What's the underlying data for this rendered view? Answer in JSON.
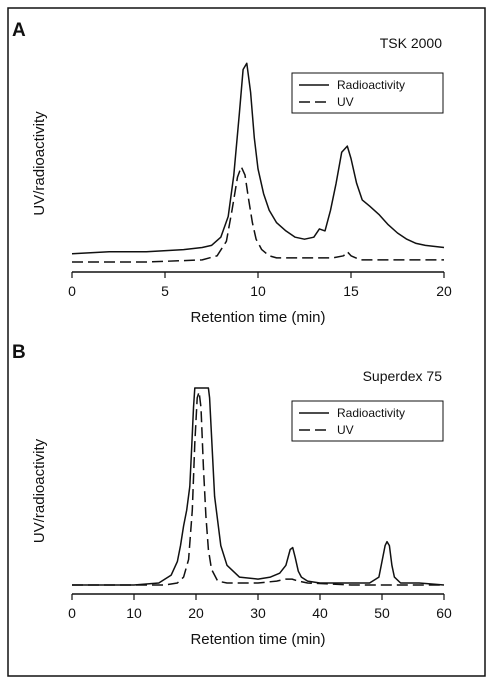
{
  "chart_data": [
    {
      "type": "line",
      "panel": "A",
      "title": "TSK 2000",
      "xlabel": "Retention time (min)",
      "ylabel": "UV/radioactivity",
      "xlim": [
        0,
        20
      ],
      "xticks": [
        0,
        5,
        10,
        15,
        20
      ],
      "ylim": [
        0,
        1.05
      ],
      "grid": false,
      "legend_position": "top-right",
      "series": [
        {
          "name": "Radioactivity",
          "style": "solid",
          "x": [
            0,
            2,
            4,
            6,
            7,
            7.5,
            8,
            8.4,
            8.7,
            9.0,
            9.2,
            9.4,
            9.6,
            9.8,
            10.0,
            10.3,
            10.6,
            11.0,
            11.5,
            12.0,
            12.5,
            13.0,
            13.3,
            13.6,
            13.9,
            14.2,
            14.5,
            14.8,
            15.0,
            15.3,
            15.6,
            16.0,
            16.5,
            17.0,
            17.5,
            18.0,
            18.5,
            19.0,
            20.0
          ],
          "y": [
            0.04,
            0.05,
            0.05,
            0.06,
            0.07,
            0.08,
            0.12,
            0.22,
            0.42,
            0.72,
            0.93,
            0.96,
            0.82,
            0.6,
            0.45,
            0.33,
            0.25,
            0.19,
            0.15,
            0.12,
            0.11,
            0.12,
            0.16,
            0.15,
            0.25,
            0.38,
            0.53,
            0.56,
            0.5,
            0.38,
            0.3,
            0.27,
            0.23,
            0.18,
            0.14,
            0.11,
            0.09,
            0.08,
            0.07
          ]
        },
        {
          "name": "UV",
          "style": "dashed",
          "x": [
            0,
            4,
            7,
            7.8,
            8.3,
            8.6,
            8.9,
            9.1,
            9.3,
            9.5,
            9.7,
            9.9,
            10.2,
            10.6,
            11.0,
            12.0,
            13.0,
            14.0,
            14.6,
            14.8,
            15.0,
            15.5,
            17.0,
            20.0
          ],
          "y": [
            0.0,
            0.0,
            0.01,
            0.03,
            0.1,
            0.25,
            0.41,
            0.46,
            0.42,
            0.3,
            0.19,
            0.11,
            0.06,
            0.03,
            0.02,
            0.02,
            0.02,
            0.02,
            0.03,
            0.05,
            0.03,
            0.01,
            0.01,
            0.01
          ]
        }
      ]
    },
    {
      "type": "line",
      "panel": "B",
      "title": "Superdex 75",
      "xlabel": "Retention time (min)",
      "ylabel": "UV/radioactivity",
      "xlim": [
        0,
        60
      ],
      "xticks": [
        0,
        10,
        20,
        30,
        40,
        50,
        60
      ],
      "ylim": [
        0,
        1.05
      ],
      "grid": false,
      "legend_position": "top-right",
      "series": [
        {
          "name": "Radioactivity",
          "style": "solid",
          "x": [
            0,
            10,
            14,
            16,
            17,
            17.5,
            18,
            18.5,
            19,
            19.3,
            19.6,
            19.8,
            22.0,
            22.2,
            22.6,
            23.0,
            24.0,
            25.0,
            27.0,
            30.0,
            32.0,
            33.5,
            34.5,
            35.2,
            35.6,
            36.0,
            36.5,
            37.0,
            38.0,
            40.0,
            45.0,
            48.0,
            49.5,
            50.0,
            50.5,
            50.8,
            51.2,
            51.6,
            52.0,
            53.0,
            56.0,
            60.0
          ],
          "y": [
            0.0,
            0.0,
            0.01,
            0.05,
            0.12,
            0.2,
            0.3,
            0.38,
            0.5,
            0.7,
            0.9,
            1.0,
            1.0,
            0.95,
            0.7,
            0.45,
            0.2,
            0.1,
            0.04,
            0.03,
            0.04,
            0.06,
            0.1,
            0.18,
            0.19,
            0.14,
            0.07,
            0.04,
            0.02,
            0.01,
            0.01,
            0.01,
            0.04,
            0.12,
            0.2,
            0.22,
            0.2,
            0.1,
            0.04,
            0.01,
            0.01,
            0.0
          ]
        },
        {
          "name": "UV",
          "style": "dashed",
          "x": [
            0,
            15,
            17,
            18,
            18.8,
            19.4,
            19.8,
            20.2,
            20.5,
            20.8,
            21.2,
            21.6,
            22.0,
            22.5,
            23.5,
            25,
            30,
            33,
            34.5,
            35.5,
            36.5,
            38,
            45,
            60
          ],
          "y": [
            0.0,
            0.0,
            0.01,
            0.04,
            0.13,
            0.38,
            0.72,
            0.95,
            0.98,
            0.9,
            0.6,
            0.35,
            0.18,
            0.08,
            0.02,
            0.01,
            0.01,
            0.02,
            0.03,
            0.03,
            0.02,
            0.01,
            0.0,
            0.0
          ]
        }
      ]
    }
  ]
}
